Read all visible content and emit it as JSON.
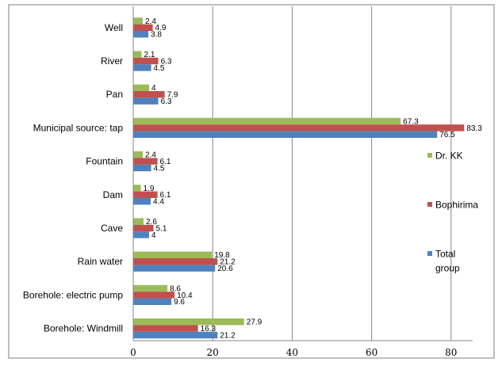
{
  "chart_data": {
    "type": "bar",
    "orientation": "horizontal",
    "categories": [
      "Well",
      "River",
      "Pan",
      "Municipal source: tap",
      "Fountain",
      "Dam",
      "Cave",
      "Rain water",
      "Borehole: electric pump",
      "Borehole: Windmill"
    ],
    "series": [
      {
        "name": "Dr. KK",
        "color": "#9bbb59",
        "values": [
          2.4,
          2.1,
          4,
          67.3,
          2.4,
          1.9,
          2.6,
          19.8,
          8.6,
          27.9
        ]
      },
      {
        "name": "Bophirima",
        "color": "#c0504d",
        "values": [
          4.9,
          6.3,
          7.9,
          83.3,
          6.1,
          6.1,
          5.1,
          21.2,
          10.4,
          16.3
        ]
      },
      {
        "name": "Total group",
        "color": "#4f81bd",
        "values": [
          3.8,
          4.5,
          6.3,
          76.5,
          4.5,
          4.4,
          4,
          20.6,
          9.6,
          21.2
        ]
      }
    ],
    "value_labels": [
      [
        "2.4",
        "2.1",
        "4",
        "67.3",
        "2.4",
        "1.9",
        "2.6",
        "19.8",
        "8.6",
        "27.9"
      ],
      [
        "4.9",
        "6.3",
        "7.9",
        "83.3",
        "6.1",
        "6.1",
        "5.1",
        "21.2",
        "10.4",
        "16.3"
      ],
      [
        "3.8",
        "4.5",
        "6.3",
        "76.5",
        "4.5",
        "4.4",
        "4",
        "20.6",
        "9.6",
        "21.2"
      ]
    ],
    "x_ticks": [
      "0",
      "20",
      "40",
      "60",
      "80"
    ],
    "xlim": [
      0,
      85
    ],
    "grid": true,
    "legend_position": "right",
    "legend": {
      "items": [
        {
          "lines": [
            "Dr. KK"
          ]
        },
        {
          "lines": [
            "Bophirima"
          ]
        },
        {
          "lines": [
            "Total",
            "group"
          ]
        }
      ]
    }
  }
}
